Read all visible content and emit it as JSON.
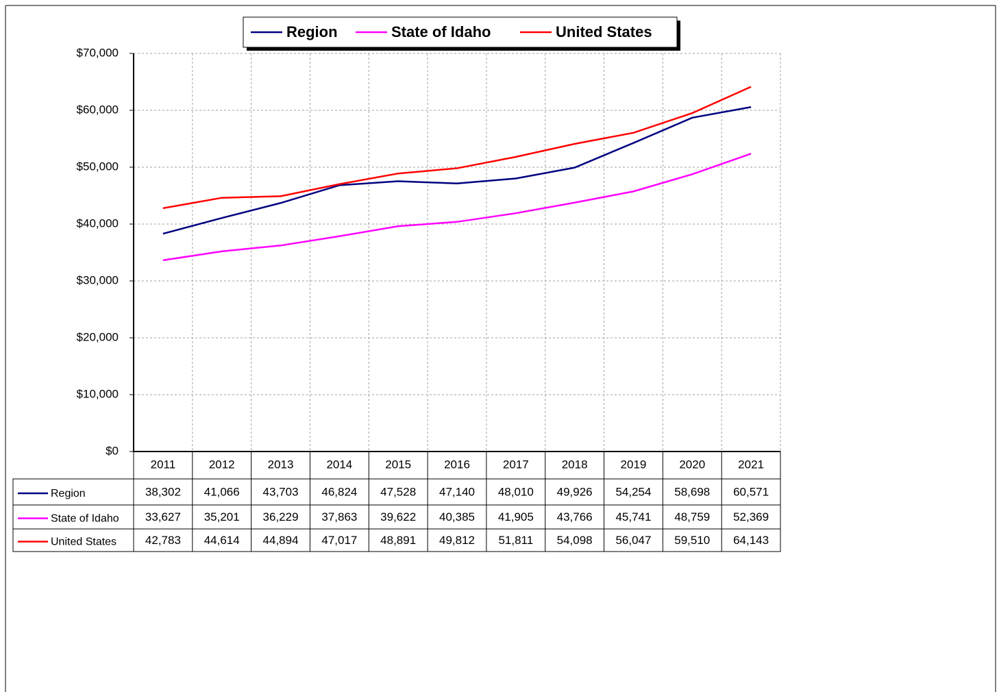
{
  "chart_data": {
    "type": "line",
    "categories": [
      "2011",
      "2012",
      "2013",
      "2014",
      "2015",
      "2016",
      "2017",
      "2018",
      "2019",
      "2020",
      "2021"
    ],
    "series": [
      {
        "name": "Region",
        "color": "#000080",
        "values": [
          38302,
          41066,
          43703,
          46824,
          47528,
          47140,
          48010,
          49926,
          54254,
          58698,
          60571
        ],
        "value_labels": [
          "38,302",
          "41,066",
          "43,703",
          "46,824",
          "47,528",
          "47,140",
          "48,010",
          "49,926",
          "54,254",
          "58,698",
          "60,571"
        ]
      },
      {
        "name": "State of Idaho",
        "color": "#ff00ff",
        "values": [
          33627,
          35201,
          36229,
          37863,
          39622,
          40385,
          41905,
          43766,
          45741,
          48759,
          52369
        ],
        "value_labels": [
          "33,627",
          "35,201",
          "36,229",
          "37,863",
          "39,622",
          "40,385",
          "41,905",
          "43,766",
          "45,741",
          "48,759",
          "52,369"
        ]
      },
      {
        "name": "United States",
        "color": "#ff0000",
        "values": [
          42783,
          44614,
          44894,
          47017,
          48891,
          49812,
          51811,
          54098,
          56047,
          59510,
          64143
        ],
        "value_labels": [
          "42,783",
          "44,614",
          "44,894",
          "47,017",
          "48,891",
          "49,812",
          "51,811",
          "54,098",
          "56,047",
          "59,510",
          "64,143"
        ]
      }
    ],
    "ylim": [
      0,
      70000
    ],
    "yticks": [
      {
        "value": 0,
        "label": "$0"
      },
      {
        "value": 10000,
        "label": "$10,000"
      },
      {
        "value": 20000,
        "label": "$20,000"
      },
      {
        "value": 30000,
        "label": "$30,000"
      },
      {
        "value": 40000,
        "label": "$40,000"
      },
      {
        "value": 50000,
        "label": "$50,000"
      },
      {
        "value": 60000,
        "label": "$60,000"
      },
      {
        "value": 70000,
        "label": "$70,000"
      }
    ],
    "grid": true,
    "legend": "top"
  }
}
